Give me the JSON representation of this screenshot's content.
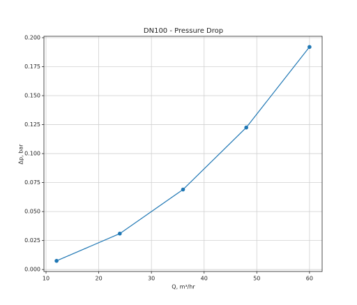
{
  "chart_data": {
    "type": "line",
    "title": "DN100 - Pressure Drop",
    "x_label": "Q, m³/hr",
    "y_label": "Δp, bar",
    "x": [
      12,
      24,
      36,
      48,
      60
    ],
    "series": [
      {
        "name": "DN100",
        "color": "#1f77b4",
        "values": [
          0.0075,
          0.031,
          0.069,
          0.1225,
          0.192
        ]
      }
    ],
    "xlim": [
      9.6,
      62.4
    ],
    "xticks": [
      10,
      20,
      30,
      40,
      50,
      60
    ],
    "ylim": [
      -0.0017,
      0.2012
    ],
    "yticks": [
      {
        "value": 0,
        "label": "0.000"
      },
      {
        "value": 0.025,
        "label": "0.025"
      },
      {
        "value": 0.05,
        "label": "0.050"
      },
      {
        "value": 0.075,
        "label": "0.075"
      },
      {
        "value": 0.1,
        "label": "0.100"
      },
      {
        "value": 0.125,
        "label": "0.125"
      },
      {
        "value": 0.15,
        "label": "0.150"
      },
      {
        "value": 0.175,
        "label": "0.175"
      },
      {
        "value": 0.2,
        "label": "0.200"
      }
    ],
    "grid": true,
    "markers": true
  }
}
